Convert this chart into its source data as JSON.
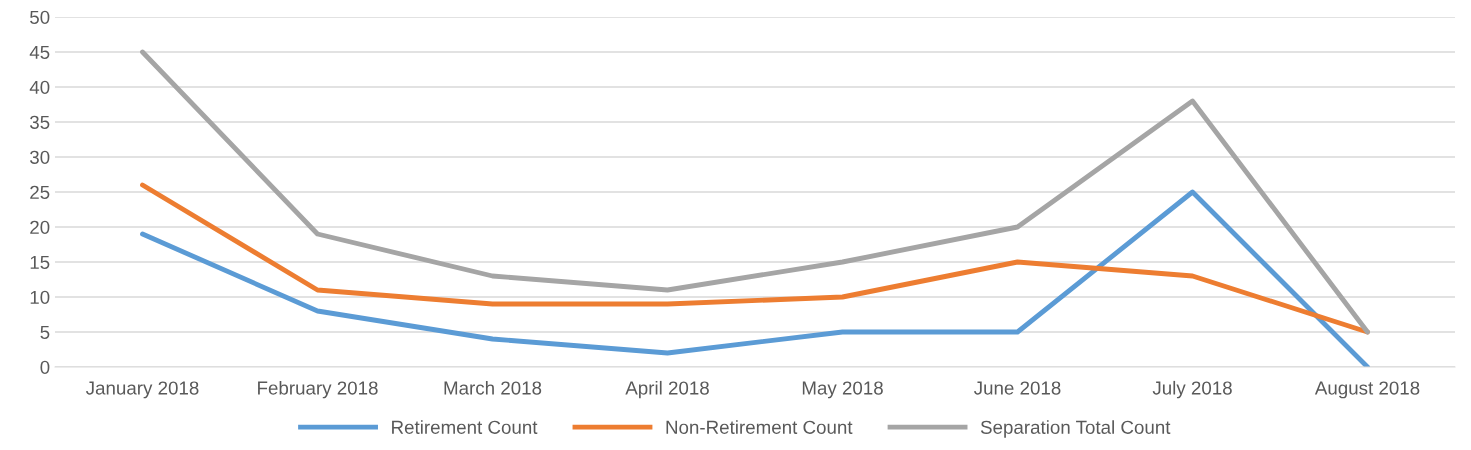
{
  "chart_data": {
    "type": "line",
    "categories": [
      "January 2018",
      "February 2018",
      "March 2018",
      "April 2018",
      "May 2018",
      "June 2018",
      "July 2018",
      "August 2018"
    ],
    "series": [
      {
        "name": "Retirement Count",
        "color": "#5b9bd5",
        "values": [
          19,
          8,
          4,
          2,
          5,
          5,
          25,
          0
        ]
      },
      {
        "name": "Non-Retirement Count",
        "color": "#ed7d31",
        "values": [
          26,
          11,
          9,
          9,
          10,
          15,
          13,
          5
        ]
      },
      {
        "name": "Separation Total Count",
        "color": "#a5a5a5",
        "values": [
          45,
          19,
          13,
          11,
          15,
          20,
          38,
          5
        ]
      }
    ],
    "ylim": [
      0,
      50
    ],
    "yticks": [
      0,
      5,
      10,
      15,
      20,
      25,
      30,
      35,
      40,
      45,
      50
    ],
    "grid": "y",
    "legend": "bottom",
    "marker": "none",
    "line_style": "solid"
  }
}
